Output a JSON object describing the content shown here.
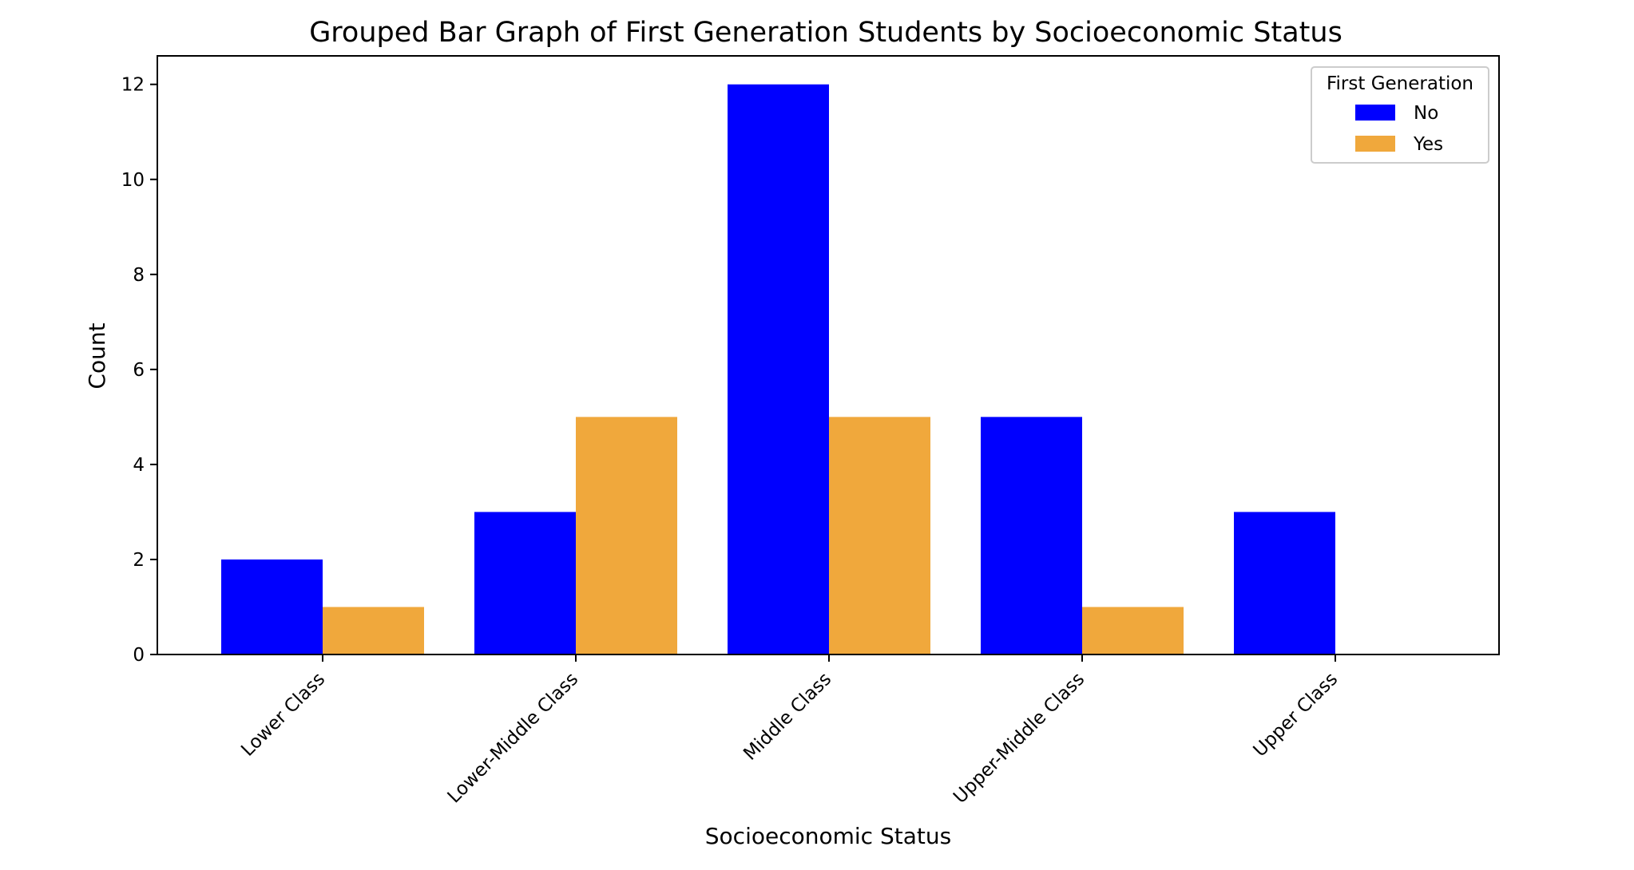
{
  "chart_data": {
    "type": "bar",
    "title": "Grouped Bar Graph of First Generation Students by Socioeconomic Status",
    "xlabel": "Socioeconomic Status",
    "ylabel": "Count",
    "ylim": [
      0,
      12.6
    ],
    "yticks": [
      0,
      2,
      4,
      6,
      8,
      10,
      12
    ],
    "categories": [
      "Lower Class",
      "Lower-Middle Class",
      "Middle Class",
      "Upper-Middle Class",
      "Upper Class"
    ],
    "series": [
      {
        "name": "No",
        "color": "#0000ff",
        "values": [
          2,
          3,
          12,
          5,
          3
        ]
      },
      {
        "name": "Yes",
        "color": "#f0a83c",
        "values": [
          1,
          5,
          5,
          1,
          0
        ]
      }
    ],
    "legend": {
      "title": "First Generation",
      "placement": "top-right"
    },
    "grid": false
  }
}
